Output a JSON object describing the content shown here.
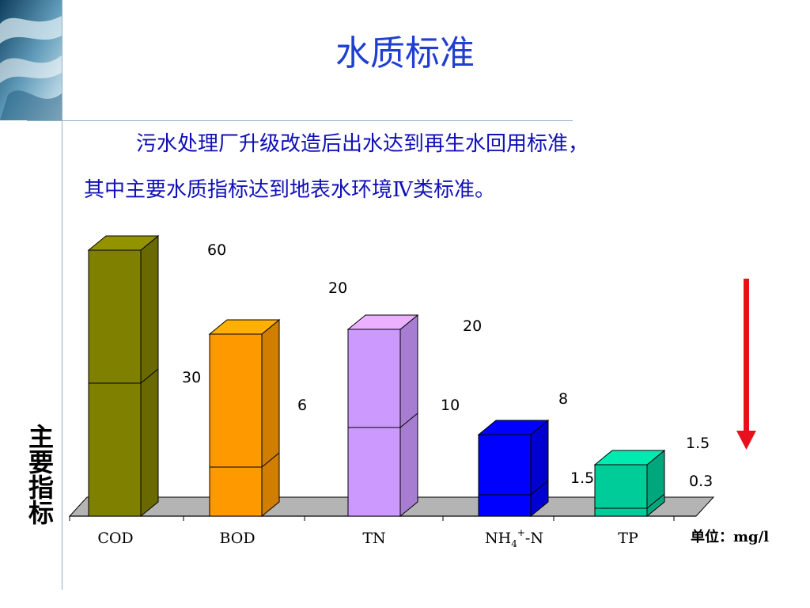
{
  "title": "水质标准",
  "body": {
    "line1": "污水处理厂升级改造后出水达到再生水回用标准，",
    "line2": "其中主要水质指标达到地表水环境Ⅳ类标准。"
  },
  "side_label": [
    "主",
    "要",
    "指",
    "标"
  ],
  "unit_label": "单位：mg/l",
  "colors": {
    "title": "#1f3fd0",
    "body_text": "#1010b8",
    "arrow": "#e8101c",
    "floor": "#b4b4b4"
  },
  "chart_data": {
    "type": "bar",
    "categories": [
      "COD",
      "BOD",
      "TN",
      "NH4+-N",
      "TP"
    ],
    "series": [
      {
        "values": [
          60,
          20,
          20,
          8,
          1.5
        ]
      },
      {
        "values": [
          30,
          6,
          10,
          1.5,
          0.3
        ]
      }
    ],
    "bar_colors": [
      "#808000",
      "#ff9900",
      "#cc99ff",
      "#0000ff",
      "#00cc99"
    ],
    "top_labels": [
      "60",
      "20",
      "20",
      "8",
      "1.5"
    ],
    "split_labels": [
      "30",
      "6",
      "10",
      "1.5",
      "0.3"
    ],
    "title": "",
    "xlabel": "",
    "ylabel": "",
    "legend": "none",
    "grid": false
  }
}
